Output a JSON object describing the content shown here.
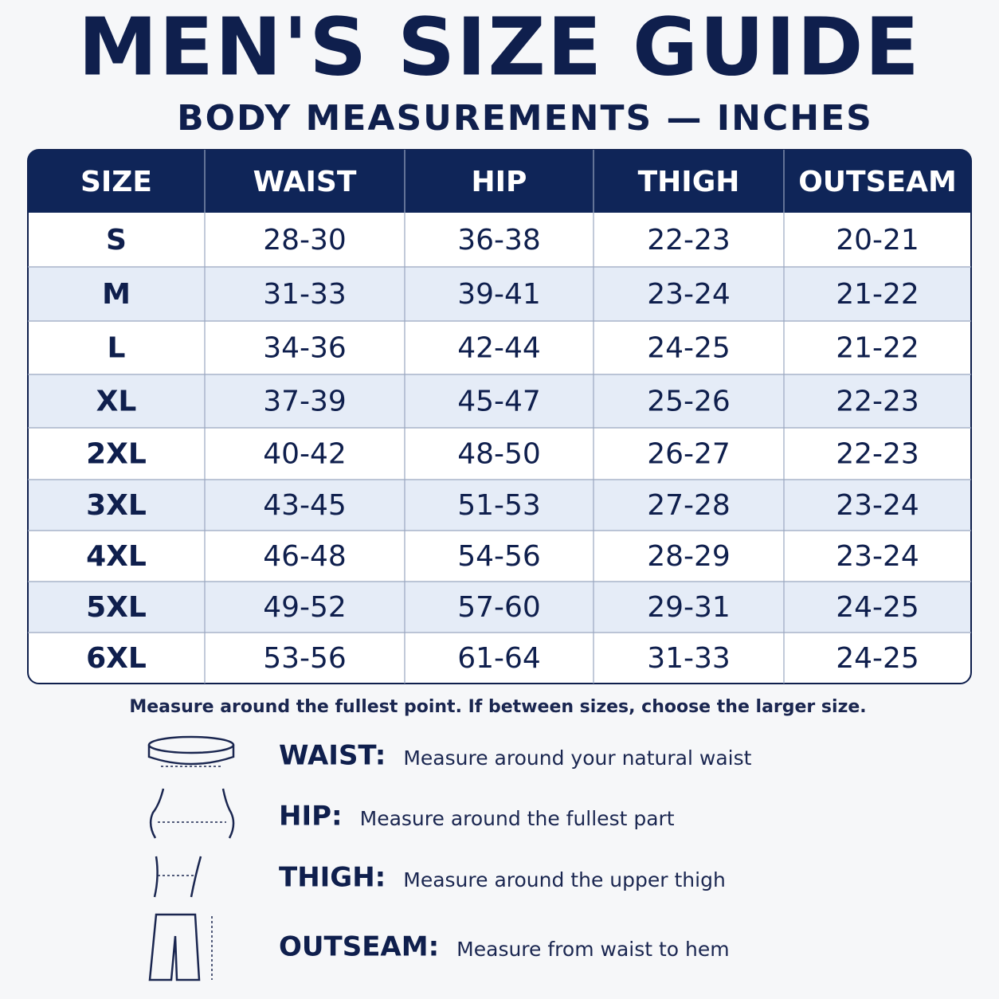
{
  "header": {
    "title": "MEN'S SIZE GUIDE",
    "subtitle": "BODY MEASUREMENTS — INCHES"
  },
  "table": {
    "columns": [
      "SIZE",
      "WAIST",
      "HIP",
      "THIGH",
      "OUTSEAM"
    ],
    "rows": [
      [
        "S",
        "28-30",
        "36-38",
        "22-23",
        "20-21"
      ],
      [
        "M",
        "31-33",
        "39-41",
        "23-24",
        "21-22"
      ],
      [
        "L",
        "34-36",
        "42-44",
        "24-25",
        "21-22"
      ],
      [
        "XL",
        "37-39",
        "45-47",
        "25-26",
        "22-23"
      ],
      [
        "2XL",
        "40-42",
        "48-50",
        "26-27",
        "22-23"
      ],
      [
        "3XL",
        "43-45",
        "51-53",
        "27-28",
        "23-24"
      ],
      [
        "4XL",
        "46-48",
        "54-56",
        "28-29",
        "23-24"
      ],
      [
        "5XL",
        "49-52",
        "57-60",
        "29-31",
        "24-25"
      ],
      [
        "6XL",
        "53-56",
        "61-64",
        "31-33",
        "24-25"
      ]
    ]
  },
  "note": "Measure around the fullest point. If between sizes, choose the larger size.",
  "guide": [
    {
      "label": "WAIST:",
      "text": "Measure around your natural waist"
    },
    {
      "label": "HIP:",
      "text": "Measure around the fullest part"
    },
    {
      "label": "THIGH:",
      "text": "Measure around the upper thigh"
    },
    {
      "label": "OUTSEAM:",
      "text": "Measure from waist to hem"
    }
  ]
}
